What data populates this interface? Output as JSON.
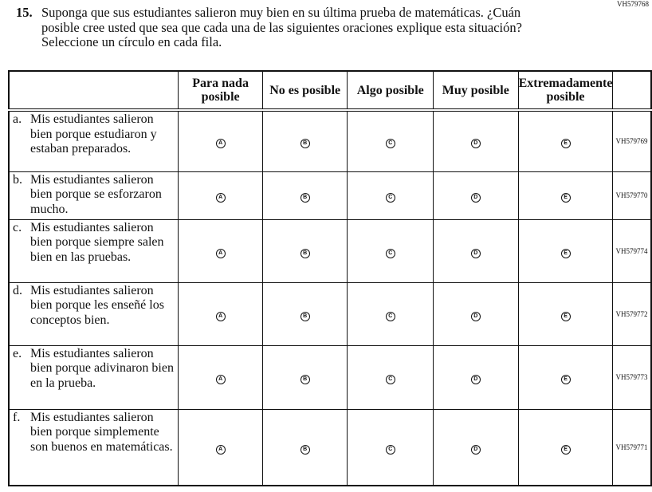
{
  "page_code": "VH579768",
  "question": {
    "number": "15.",
    "text": "Suponga que sus estudiantes salieron muy bien en su última prueba de matemáticas. ¿Cuán posible cree usted que sea que cada una de las siguientes oraciones explique esta situación? Seleccione un círculo en cada fila."
  },
  "columns": [
    "Para nada posible",
    "No es posible",
    "Algo posible",
    "Muy posible",
    "Extremadamente posible"
  ],
  "option_letters": [
    "A",
    "B",
    "C",
    "D",
    "E"
  ],
  "rows": [
    {
      "letter": "a.",
      "text": "Mis estudiantes salieron bien porque estudiaron y estaban preparados.",
      "code": "VH579769"
    },
    {
      "letter": "b.",
      "text": "Mis estudiantes salieron bien porque se esforzaron mucho.",
      "code": "VH579770"
    },
    {
      "letter": "c.",
      "text": "Mis estudiantes salieron bien porque siempre salen bien en las pruebas.",
      "code": "VH579774"
    },
    {
      "letter": "d.",
      "text": "Mis estudiantes salieron bien porque les enseñé los conceptos bien.",
      "code": "VH579772"
    },
    {
      "letter": "e.",
      "text": "Mis estudiantes salieron bien porque adivinaron bien en la prueba.",
      "code": "VH579773"
    },
    {
      "letter": "f.",
      "text": "Mis estudiantes salieron bien porque simplemente son buenos en matemáticas.",
      "code": "VH579771"
    }
  ]
}
